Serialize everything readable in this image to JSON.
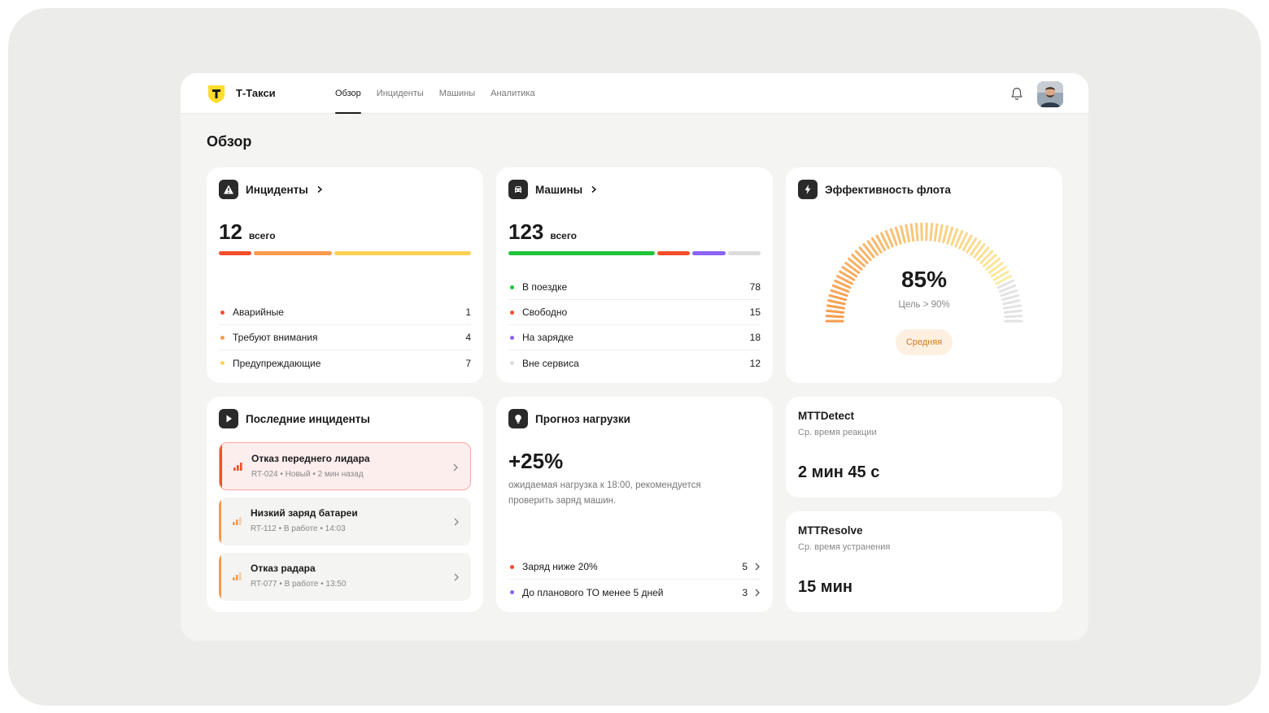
{
  "app": {
    "brand": "Т-Такси",
    "nav": [
      {
        "label": "Обзор",
        "active": true
      },
      {
        "label": "Инциденты",
        "active": false
      },
      {
        "label": "Машины",
        "active": false
      },
      {
        "label": "Аналитика",
        "active": false
      }
    ]
  },
  "page": {
    "title": "Обзор"
  },
  "incidents": {
    "title": "Инциденты",
    "total": "12",
    "total_unit": "всего",
    "segments": [
      {
        "color": "#f24e2a",
        "value": 1
      },
      {
        "color": "#f79a4c",
        "value": 4
      },
      {
        "color": "#fbd155",
        "value": 7
      }
    ],
    "rows": [
      {
        "label": "Аварийные",
        "value": "1",
        "color": "#f24e2a"
      },
      {
        "label": "Требуют внимания",
        "value": "4",
        "color": "#f79a4c"
      },
      {
        "label": "Предупреждающие",
        "value": "7",
        "color": "#fbd155"
      }
    ]
  },
  "cars": {
    "title": "Машины",
    "total": "123",
    "total_unit": "всего",
    "segments": [
      {
        "color": "#1fc43a",
        "value": 78
      },
      {
        "color": "#f24e2a",
        "value": 15
      },
      {
        "color": "#8a63f2",
        "value": 18
      },
      {
        "color": "#dcdcdc",
        "value": 12
      }
    ],
    "rows": [
      {
        "label": "В поездке",
        "value": "78",
        "color": "#1fc43a"
      },
      {
        "label": "Свободно",
        "value": "15",
        "color": "#f24e2a"
      },
      {
        "label": "На зарядке",
        "value": "18",
        "color": "#8a63f2"
      },
      {
        "label": "Вне сервиса",
        "value": "12",
        "color": "#dcdcdc"
      }
    ]
  },
  "efficiency": {
    "title": "Эффективность флота",
    "value": "85%",
    "level": 0.85,
    "target": "Цель > 90%",
    "badge": "Средняя"
  },
  "recent": {
    "title": "Последние инциденты",
    "items": [
      {
        "title": "Отказ переднего лидара",
        "meta": "RT-024  •  Новый  •  2 мин назад",
        "color": "#f24e2a",
        "active": true
      },
      {
        "title": "Низкий заряд батареи",
        "meta": "RT-112  •  В работе  •  14:03",
        "color": "#f79a4c",
        "active": false
      },
      {
        "title": "Отказ радара",
        "meta": "RT-077  •  В работе  •  13:50",
        "color": "#f79a4c",
        "active": false
      }
    ]
  },
  "forecast": {
    "title": "Прогноз нагрузки",
    "value": "+25%",
    "text": "ожидаемая нагрузка к 18:00, рекомендуется проверить заряд машин.",
    "rows": [
      {
        "label": "Заряд ниже 20%",
        "value": "5",
        "color": "#f24e2a"
      },
      {
        "label": "До планового ТО менее 5 дней",
        "value": "3",
        "color": "#8a63f2"
      }
    ]
  },
  "mttdetect": {
    "title": "MTTDetect",
    "sub": "Ср. время реакции",
    "value": "2 мин 45 с"
  },
  "mttresolve": {
    "title": "MTTResolve",
    "sub": "Ср. время устранения",
    "value": "15 мин"
  }
}
